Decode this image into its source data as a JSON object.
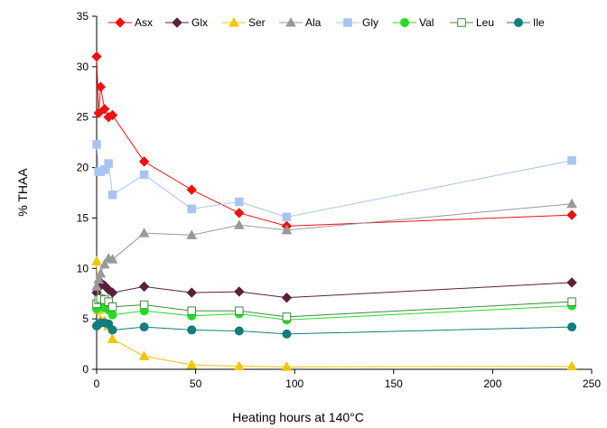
{
  "chart_data": {
    "type": "line",
    "xlabel": "Heating hours at 140°C",
    "ylabel": "% THAA",
    "xlim": [
      0,
      250
    ],
    "ylim": [
      0,
      35
    ],
    "xticks": [
      0,
      50,
      100,
      150,
      200,
      250
    ],
    "yticks": [
      0,
      5,
      10,
      15,
      20,
      25,
      30,
      35
    ],
    "grid": false,
    "legend_position": "top",
    "series": [
      {
        "name": "Asx",
        "color": "#ee1111",
        "marker": "diamond",
        "filled": true,
        "x": [
          0,
          1,
          2,
          4,
          6,
          8,
          24,
          48,
          72,
          96,
          240
        ],
        "y": [
          31.0,
          25.4,
          28.0,
          25.8,
          25.0,
          25.2,
          20.6,
          17.8,
          15.5,
          14.2,
          15.3
        ]
      },
      {
        "name": "Glx",
        "color": "#5a1f3c",
        "marker": "diamond",
        "filled": true,
        "x": [
          0,
          1,
          2,
          4,
          6,
          8,
          24,
          48,
          72,
          96,
          240
        ],
        "y": [
          7.6,
          8.1,
          8.6,
          8.3,
          7.9,
          7.6,
          8.2,
          7.6,
          7.7,
          7.1,
          8.6
        ]
      },
      {
        "name": "Ser",
        "color": "#f5c400",
        "marker": "triangle",
        "filled": true,
        "x": [
          0,
          1,
          2,
          4,
          6,
          8,
          24,
          48,
          72,
          96,
          240
        ],
        "y": [
          10.7,
          5.9,
          4.9,
          4.8,
          4.3,
          3.0,
          1.3,
          0.45,
          0.3,
          0.25,
          0.3
        ]
      },
      {
        "name": "Ala",
        "color": "#999999",
        "marker": "triangle",
        "filled": true,
        "x": [
          0,
          1,
          2,
          4,
          6,
          8,
          24,
          48,
          72,
          96,
          240
        ],
        "y": [
          8.2,
          8.9,
          9.5,
          10.4,
          11.0,
          10.9,
          13.5,
          13.3,
          14.3,
          13.8,
          16.4
        ]
      },
      {
        "name": "Gly",
        "color": "#a8c4f4",
        "marker": "square",
        "filled": true,
        "x": [
          0,
          1,
          2,
          4,
          6,
          8,
          24,
          48,
          72,
          96,
          240
        ],
        "y": [
          22.3,
          19.6,
          19.6,
          19.8,
          20.4,
          17.3,
          19.3,
          15.9,
          16.6,
          15.1,
          20.7
        ]
      },
      {
        "name": "Val",
        "color": "#22dd22",
        "marker": "circle",
        "filled": true,
        "x": [
          0,
          1,
          2,
          4,
          6,
          8,
          24,
          48,
          72,
          96,
          240
        ],
        "y": [
          6.0,
          6.4,
          6.3,
          6.1,
          5.9,
          5.4,
          5.8,
          5.3,
          5.5,
          4.9,
          6.3
        ]
      },
      {
        "name": "Leu",
        "color": "#3c8c3c",
        "marker": "square",
        "filled": false,
        "x": [
          0,
          1,
          2,
          4,
          6,
          8,
          24,
          48,
          72,
          96,
          240
        ],
        "y": [
          6.5,
          6.9,
          7.0,
          6.9,
          6.7,
          6.2,
          6.4,
          5.8,
          5.8,
          5.2,
          6.7
        ]
      },
      {
        "name": "Ile",
        "color": "#137c7c",
        "marker": "circle",
        "filled": true,
        "x": [
          0,
          1,
          2,
          4,
          6,
          8,
          24,
          48,
          72,
          96,
          240
        ],
        "y": [
          4.3,
          4.5,
          4.6,
          4.6,
          4.5,
          3.9,
          4.2,
          3.9,
          3.8,
          3.5,
          4.2
        ]
      }
    ]
  }
}
